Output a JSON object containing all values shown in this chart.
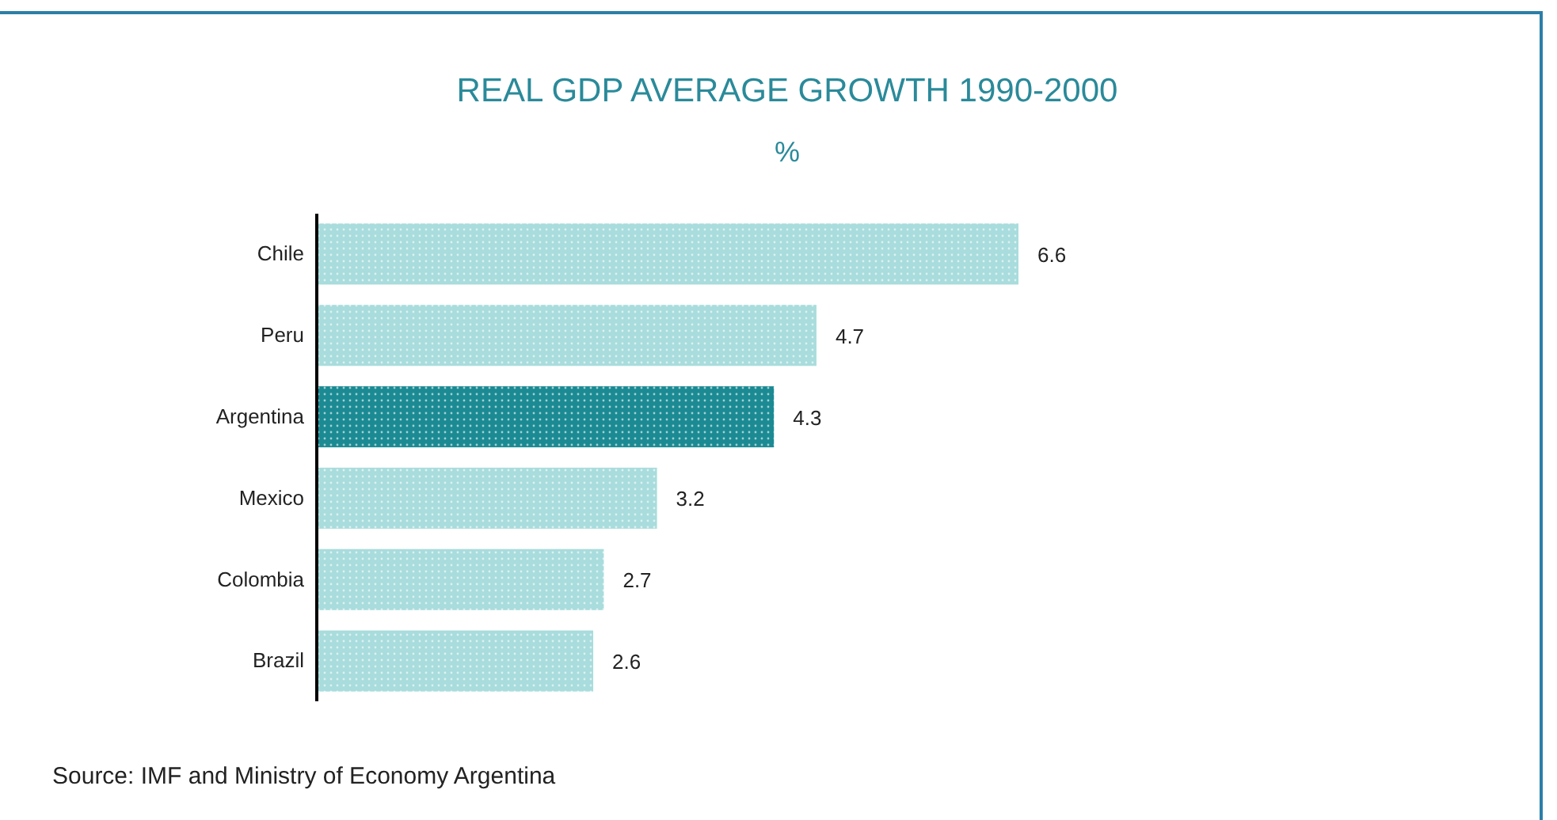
{
  "chart_data": {
    "type": "bar",
    "orientation": "horizontal",
    "title": "REAL GDP AVERAGE GROWTH 1990-2000",
    "subtitle": "%",
    "categories": [
      "Chile",
      "Peru",
      "Argentina",
      "Mexico",
      "Colombia",
      "Brazil"
    ],
    "values": [
      6.6,
      4.7,
      4.3,
      3.2,
      2.7,
      2.6
    ],
    "colors": [
      "#a9dcdc",
      "#a9dcdc",
      "#1b8a93",
      "#a9dcdc",
      "#a9dcdc",
      "#a9dcdc"
    ],
    "data_labels": true,
    "annotations": [
      "Source: IMF and Ministry of Economy Argentina"
    ]
  }
}
